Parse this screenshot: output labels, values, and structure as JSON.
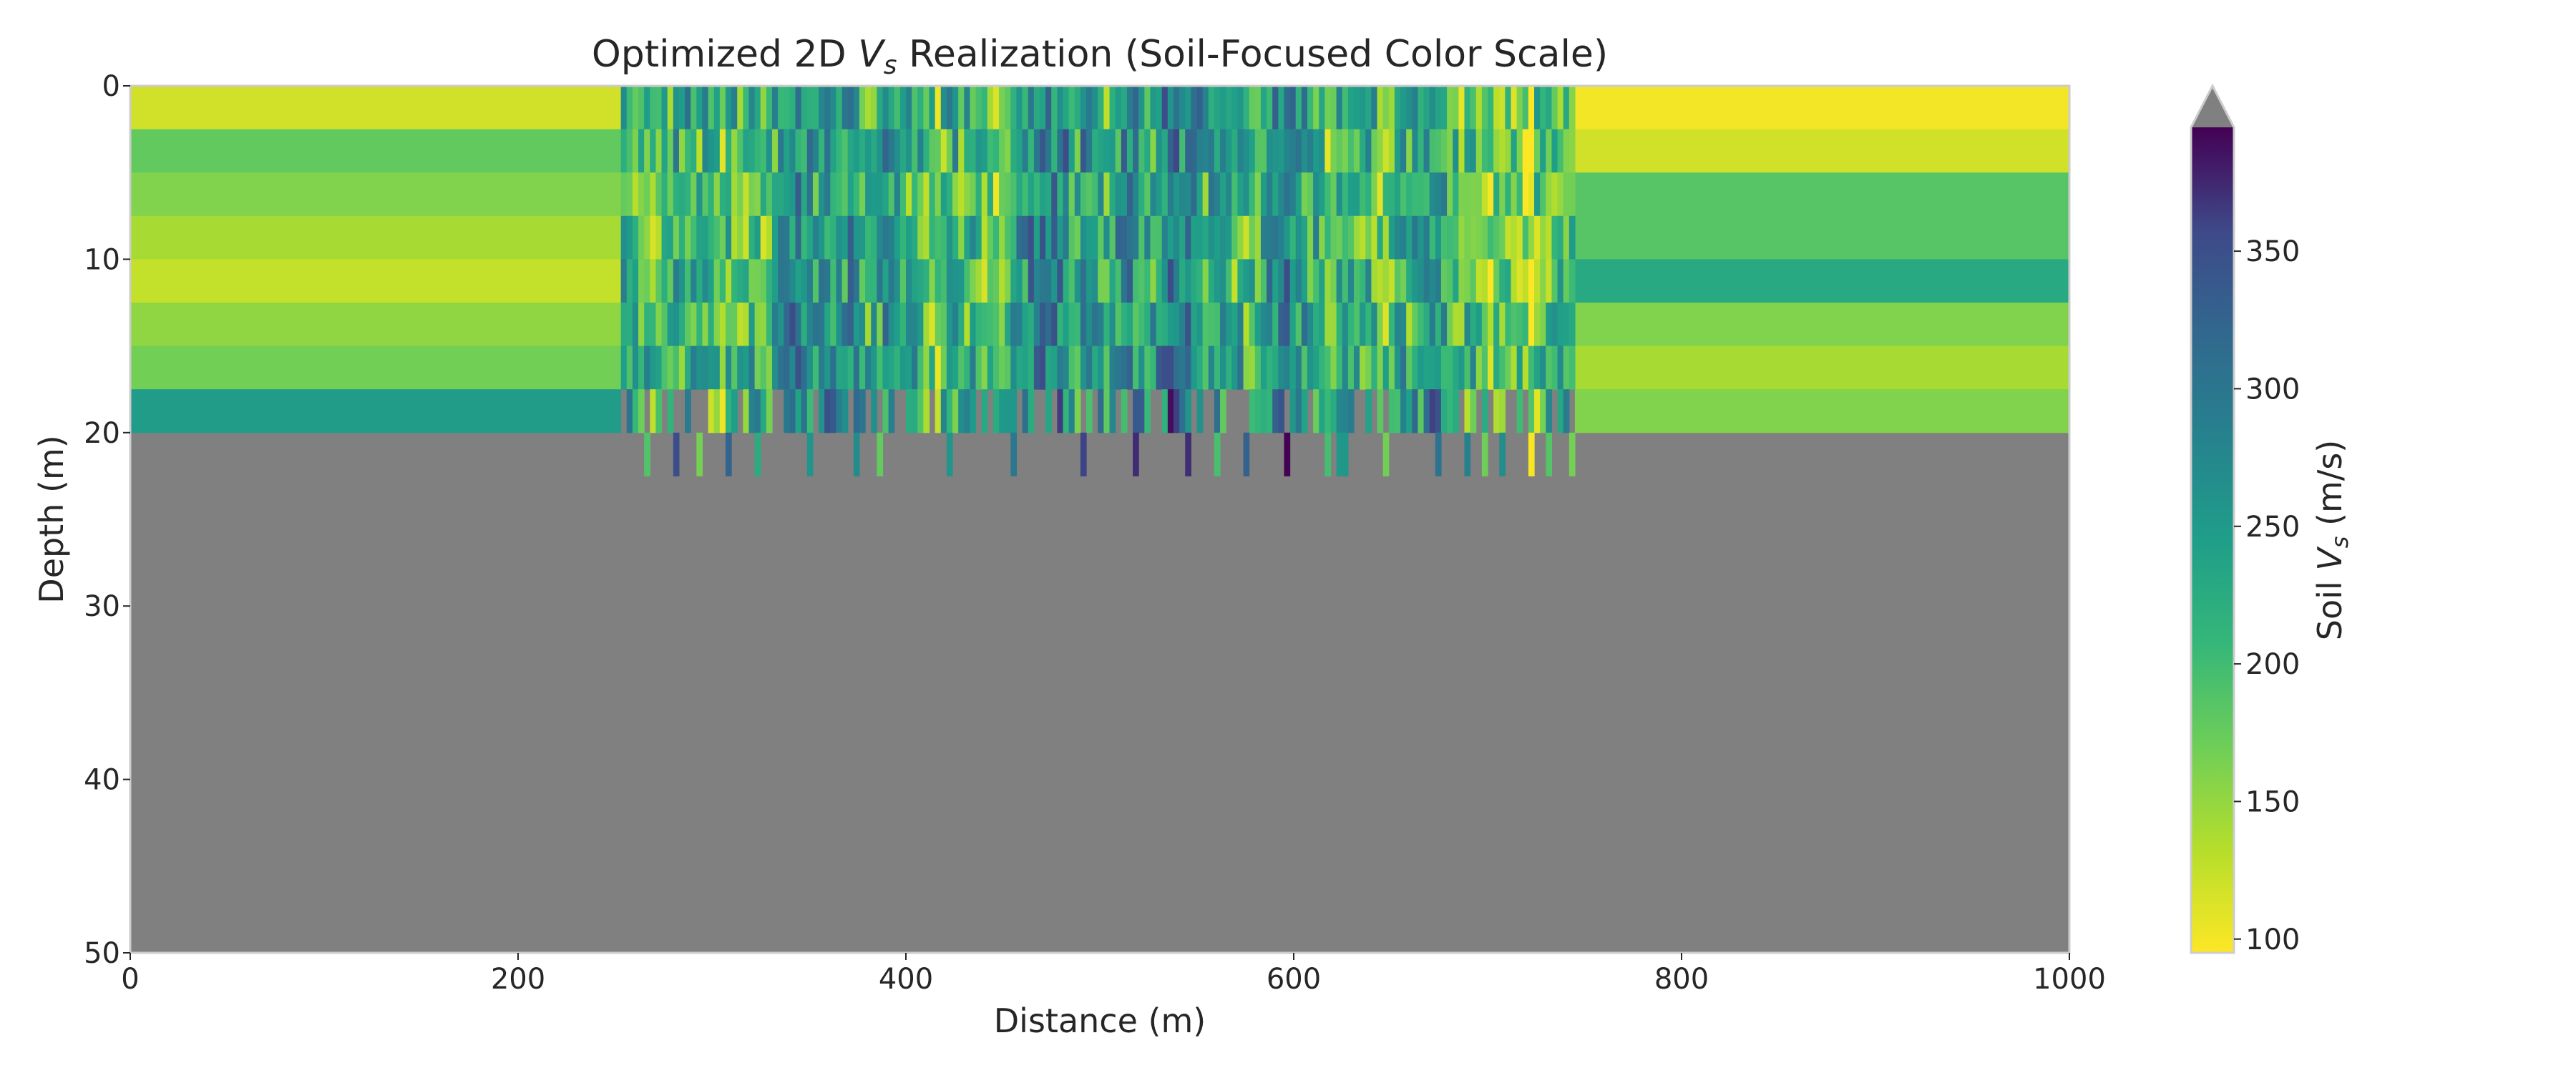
{
  "chart_data": {
    "type": "heatmap",
    "title": "Optimized 2D Vs Realization (Soil-Focused Color Scale)",
    "title_parts": {
      "prefix": "Optimized 2D ",
      "symbol": "V",
      "subscript": "s",
      "suffix": " Realization (Soil-Focused Color Scale)"
    },
    "xlabel": "Distance (m)",
    "ylabel": "Depth (m)",
    "xlim": [
      0,
      1000
    ],
    "ylim": [
      50,
      0
    ],
    "x_ticks": [
      0,
      200,
      400,
      600,
      800,
      1000
    ],
    "y_ticks": [
      0,
      10,
      20,
      30,
      40,
      50
    ],
    "x_tick_labels": [
      "0",
      "200",
      "400",
      "600",
      "800",
      "1000"
    ],
    "y_tick_labels": [
      "0",
      "10",
      "20",
      "30",
      "40",
      "50"
    ],
    "grid": false,
    "background_color": "#808080",
    "background_meaning": "values outside soil range (rock)",
    "colorbar": {
      "label": "Soil Vs (m/s)",
      "label_parts": {
        "prefix": "Soil ",
        "symbol": "V",
        "subscript": "s",
        "suffix": " (m/s)"
      },
      "colormap": "viridis_r",
      "vmin": 95,
      "vmax": 395,
      "ticks": [
        100,
        150,
        200,
        250,
        300,
        350
      ],
      "tick_labels": [
        "100",
        "150",
        "200",
        "250",
        "300",
        "350"
      ],
      "extend": "max",
      "extend_color": "#808080",
      "placement": "right"
    },
    "layer_thickness_m": 2.5,
    "left_block": {
      "x_range": [
        0,
        253
      ],
      "layers": [
        {
          "depth_top": 0,
          "depth_bottom": 2.5,
          "vs": 118
        },
        {
          "depth_top": 2.5,
          "depth_bottom": 5,
          "vs": 178
        },
        {
          "depth_top": 5,
          "depth_bottom": 7.5,
          "vs": 160
        },
        {
          "depth_top": 7.5,
          "depth_bottom": 10,
          "vs": 140
        },
        {
          "depth_top": 10,
          "depth_bottom": 12.5,
          "vs": 125
        },
        {
          "depth_top": 12.5,
          "depth_bottom": 15,
          "vs": 152
        },
        {
          "depth_top": 15,
          "depth_bottom": 17.5,
          "vs": 168
        },
        {
          "depth_top": 17.5,
          "depth_bottom": 20,
          "vs": 248
        }
      ]
    },
    "right_block": {
      "x_range": [
        745,
        1000
      ],
      "layers": [
        {
          "depth_top": 0,
          "depth_bottom": 2.5,
          "vs": 100
        },
        {
          "depth_top": 2.5,
          "depth_bottom": 5,
          "vs": 118
        },
        {
          "depth_top": 5,
          "depth_bottom": 7.5,
          "vs": 185
        },
        {
          "depth_top": 7.5,
          "depth_bottom": 10,
          "vs": 185
        },
        {
          "depth_top": 10,
          "depth_bottom": 12.5,
          "vs": 228
        },
        {
          "depth_top": 12.5,
          "depth_bottom": 15,
          "vs": 160
        },
        {
          "depth_top": 15,
          "depth_bottom": 17.5,
          "vs": 140
        },
        {
          "depth_top": 17.5,
          "depth_bottom": 20,
          "vs": 160
        }
      ]
    },
    "central_zone": {
      "x_range": [
        253,
        745
      ],
      "column_width_m": 3,
      "rows": [
        {
          "depth_top": 0,
          "depth_bottom": 2.5,
          "mean_vs": 205,
          "spread": 120
        },
        {
          "depth_top": 2.5,
          "depth_bottom": 5,
          "mean_vs": 200,
          "spread": 120
        },
        {
          "depth_top": 5,
          "depth_bottom": 7.5,
          "mean_vs": 195,
          "spread": 115
        },
        {
          "depth_top": 7.5,
          "depth_bottom": 10,
          "mean_vs": 195,
          "spread": 115
        },
        {
          "depth_top": 10,
          "depth_bottom": 12.5,
          "mean_vs": 200,
          "spread": 115
        },
        {
          "depth_top": 12.5,
          "depth_bottom": 15,
          "mean_vs": 205,
          "spread": 115
        },
        {
          "depth_top": 15,
          "depth_bottom": 17.5,
          "mean_vs": 215,
          "spread": 110
        },
        {
          "depth_top": 17.5,
          "depth_bottom": 20,
          "mean_vs": 210,
          "spread": 130,
          "fill_fraction": 0.7
        },
        {
          "depth_top": 20,
          "depth_bottom": 22.5,
          "mean_vs": 230,
          "spread": 150,
          "fill_fraction": 0.14
        }
      ],
      "random_seed": 17
    }
  }
}
